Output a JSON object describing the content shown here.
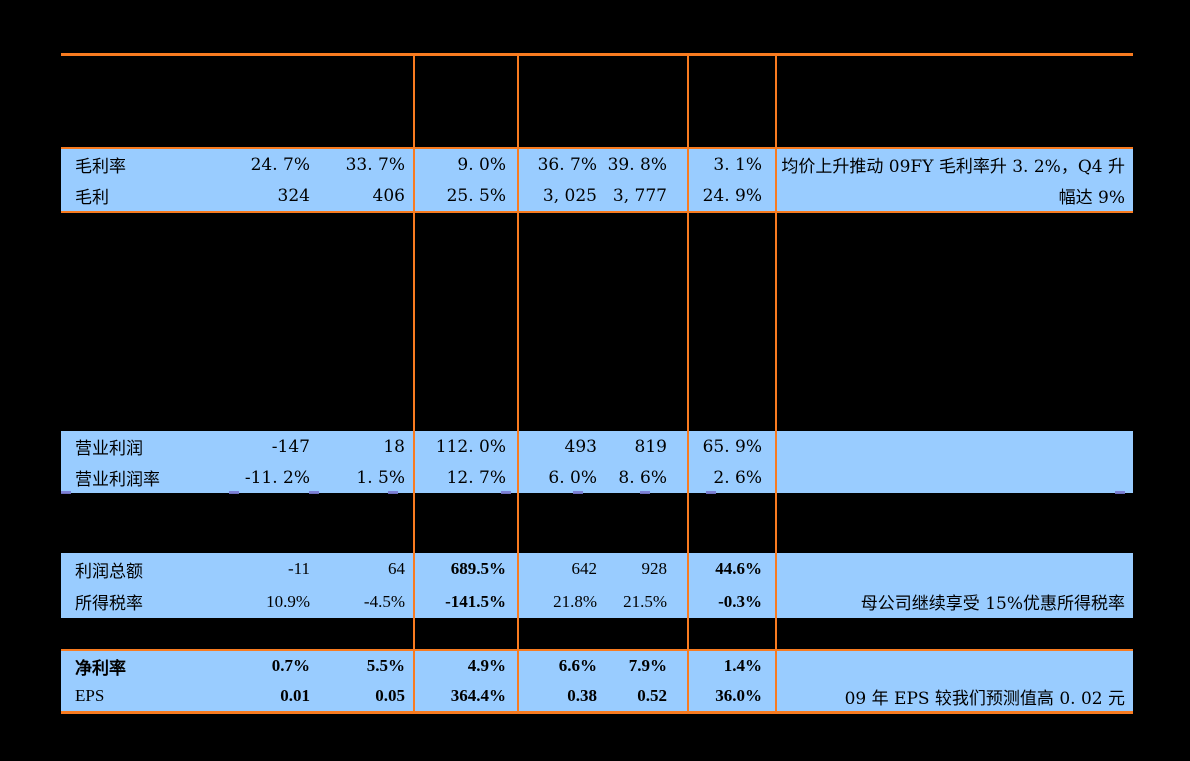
{
  "colors": {
    "background": "#000000",
    "row_highlight": "#99CCFF",
    "rule_orange": "#F87B20",
    "text": "#000000",
    "underline_mark": "#7A7AD1"
  },
  "table": {
    "sections": [
      {
        "rows": [
          {
            "label": "毛利率",
            "values": [
              "24. 7%",
              "33. 7%",
              "9. 0%",
              "36. 7%",
              "39. 8%",
              "3. 1%"
            ],
            "comment": "均价上升推动 09FY 毛利率升 3. 2%，Q4 升"
          },
          {
            "label": "毛利",
            "values": [
              "324",
              "406",
              "25. 5%",
              "3, 025",
              "3, 777",
              "24. 9%"
            ],
            "comment": "幅达 9%"
          }
        ]
      },
      {
        "rows": [
          {
            "label": "营业利润",
            "values": [
              "-147",
              "18",
              "112. 0%",
              "493",
              "819",
              "65. 9%"
            ],
            "comment": ""
          },
          {
            "label": "营业利润率",
            "values": [
              "-11. 2%",
              "1. 5%",
              "12. 7%",
              "6. 0%",
              "8. 6%",
              "2. 6%"
            ],
            "comment": ""
          }
        ]
      },
      {
        "rows": [
          {
            "label": "利润总额",
            "values": [
              "-11",
              "64",
              "689.5%",
              "642",
              "928",
              "44.6%"
            ],
            "comment": ""
          },
          {
            "label": "所得税率",
            "values": [
              "10.9%",
              "-4.5%",
              "-141.5%",
              "21.8%",
              "21.5%",
              "-0.3%"
            ],
            "comment": "母公司继续享受 15%优惠所得税率"
          }
        ]
      },
      {
        "rows": [
          {
            "label": "净利率",
            "values": [
              "0.7%",
              "5.5%",
              "4.9%",
              "6.6%",
              "7.9%",
              "1.4%"
            ],
            "comment": ""
          },
          {
            "label": "EPS",
            "values": [
              "0.01",
              "0.05",
              "364.4%",
              "0.38",
              "0.52",
              "36.0%"
            ],
            "comment": "09 年 EPS 较我们预测值高 0. 02 元"
          }
        ]
      }
    ]
  }
}
